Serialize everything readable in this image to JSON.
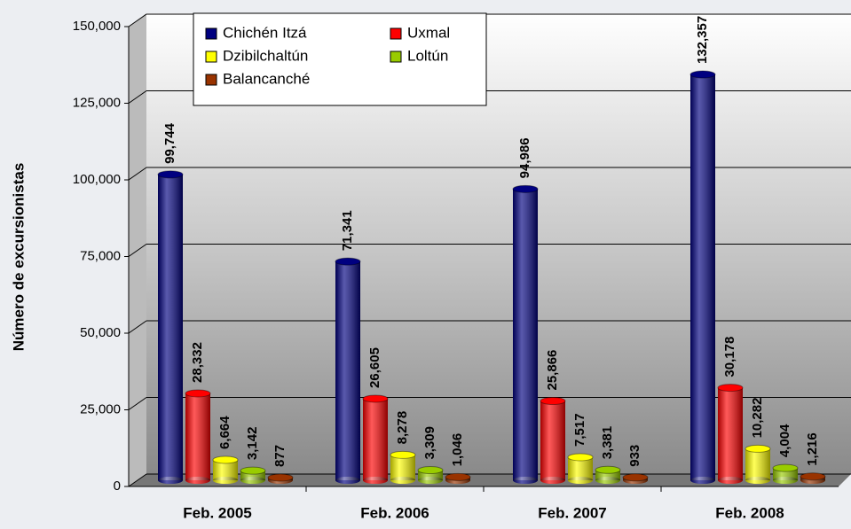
{
  "chart_data": {
    "type": "bar",
    "y_label": "Número de excursionistas",
    "categories": [
      "Feb. 2005",
      "Feb. 2006",
      "Feb. 2007",
      "Feb. 2008"
    ],
    "series": [
      {
        "name": "Chichén Itzá",
        "color": "#000080",
        "values": [
          99744,
          71341,
          94986,
          132357
        ],
        "value_labels": [
          "99,744",
          "71,341",
          "94,986",
          "132,357"
        ]
      },
      {
        "name": "Uxmal",
        "color": "#ff0000",
        "values": [
          28332,
          26605,
          25866,
          30178
        ],
        "value_labels": [
          "28,332",
          "26,605",
          "25,866",
          "30,178"
        ]
      },
      {
        "name": "Dzibilchaltún",
        "color": "#ffff00",
        "values": [
          6664,
          8278,
          7517,
          10282
        ],
        "value_labels": [
          "6,664",
          "8,278",
          "7,517",
          "10,282"
        ]
      },
      {
        "name": "Loltún",
        "color": "#99cc00",
        "values": [
          3142,
          3309,
          3381,
          4004
        ],
        "value_labels": [
          "3,142",
          "3,309",
          "3,381",
          "4,004"
        ]
      },
      {
        "name": "Balancanché",
        "color": "#993300",
        "values": [
          877,
          1046,
          933,
          1216
        ],
        "value_labels": [
          "877",
          "1,046",
          "933",
          "1,216"
        ]
      }
    ],
    "ylim": [
      0,
      150000
    ],
    "yticks": [
      0,
      {
        "value": 25000,
        "label": "25,000"
      },
      {
        "value": 50000,
        "label": "50,000"
      },
      {
        "value": 75000,
        "label": "75,000"
      },
      {
        "value": 100000,
        "label": "100,000"
      },
      {
        "value": 125000,
        "label": "125,000"
      },
      {
        "value": 150000,
        "label": "150,000"
      }
    ],
    "grid": true,
    "legend": "top-left"
  }
}
